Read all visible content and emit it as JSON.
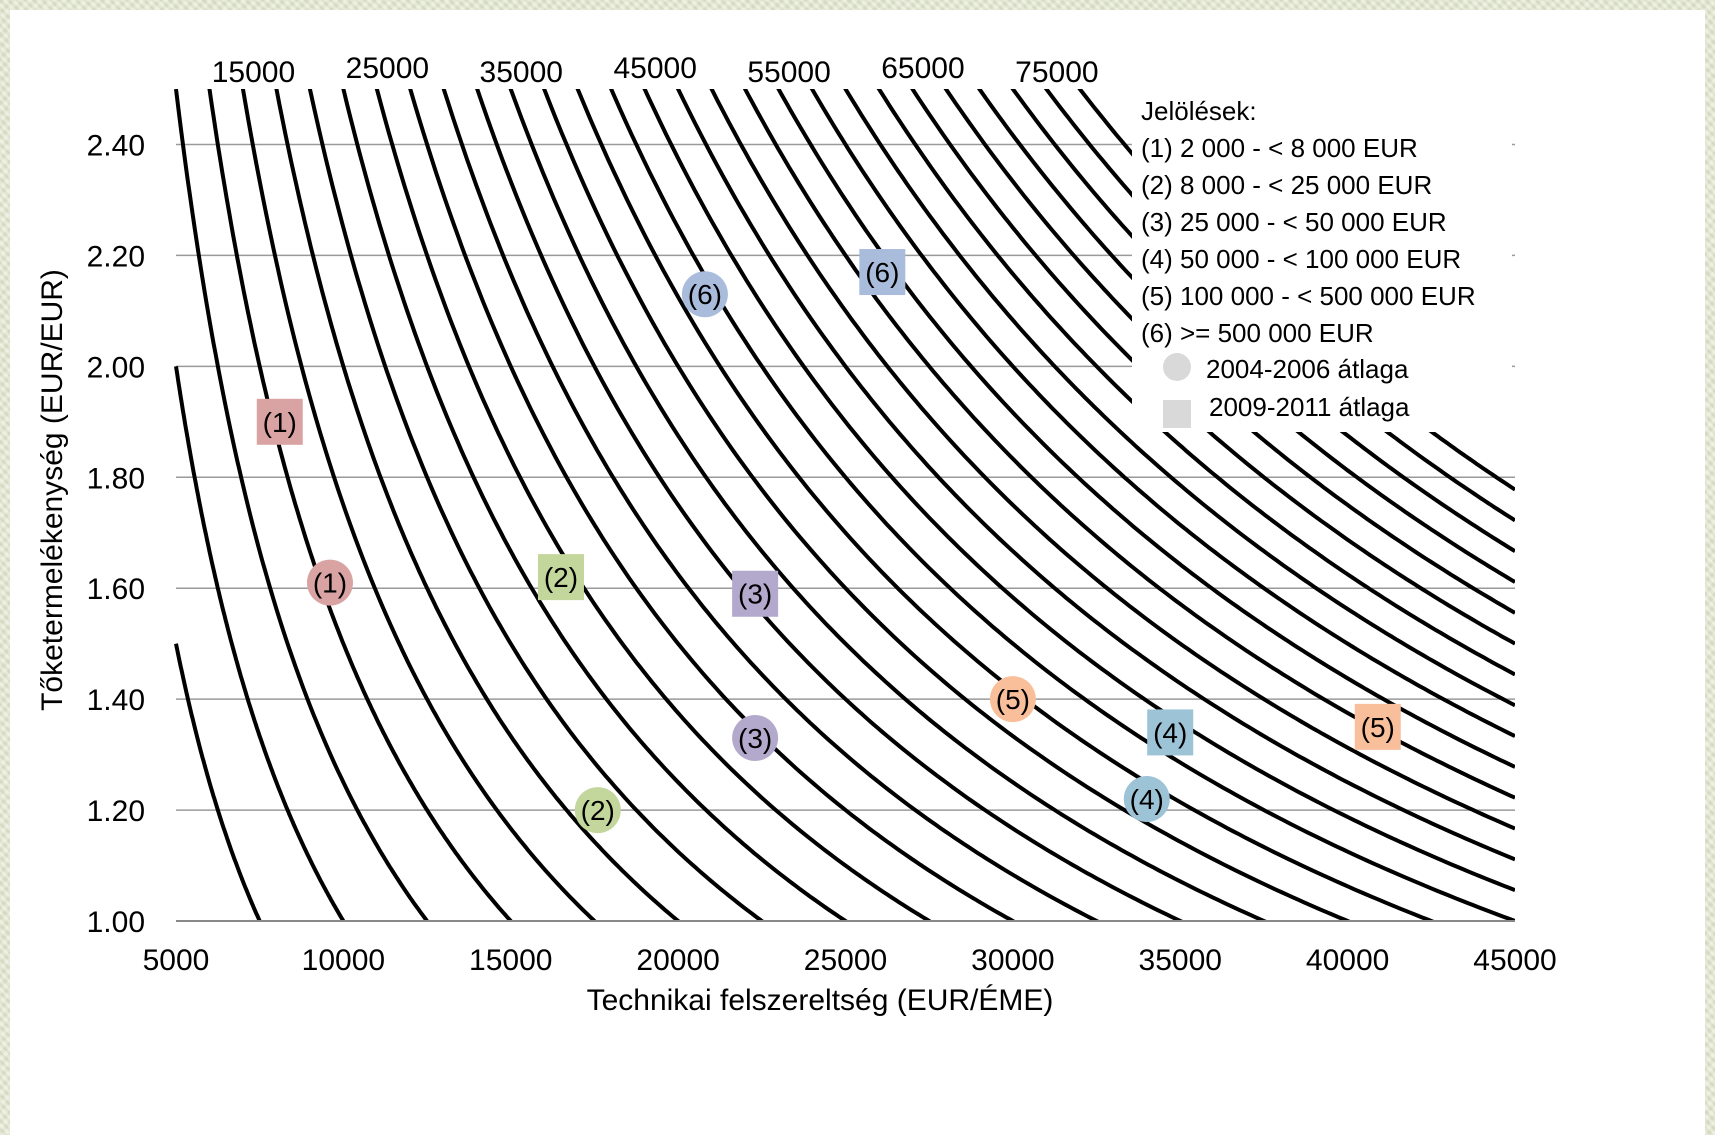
{
  "chart_data": {
    "type": "scatter",
    "xlabel": "Technikai felszereltség  (EUR/ÉME)",
    "ylabel": "Tőketermelékenység  (EUR/EUR)",
    "xlim": [
      5000,
      45000
    ],
    "ylim": [
      1.0,
      2.5
    ],
    "x_ticks": [
      "5000",
      "10000",
      "15000",
      "20000",
      "25000",
      "30000",
      "35000",
      "40000",
      "45000"
    ],
    "y_ticks": [
      "1.00",
      "1.20",
      "1.40",
      "1.60",
      "1.80",
      "2.00",
      "2.20",
      "2.40"
    ],
    "grid": "horizontal",
    "isoquants": {
      "levels": [
        5000,
        7500,
        10000,
        12500,
        15000,
        17500,
        20000,
        22500,
        25000,
        27500,
        30000,
        32500,
        35000,
        37500,
        40000,
        42500,
        45000,
        47500,
        50000,
        52500,
        55000,
        57500,
        60000,
        62500,
        65000,
        67500,
        70000,
        72500,
        75000,
        77500,
        80000
      ],
      "labels": [
        "15000",
        "25000",
        "35000",
        "45000",
        "55000",
        "65000",
        "75000"
      ]
    },
    "series": [
      {
        "name": "2004-2006 átlaga",
        "marker": "circle",
        "points": [
          {
            "label": "(1)",
            "x": 9600,
            "y": 1.61,
            "color": "#d9a3a3"
          },
          {
            "label": "(2)",
            "x": 17600,
            "y": 1.2,
            "color": "#c3d69b"
          },
          {
            "label": "(3)",
            "x": 22300,
            "y": 1.33,
            "color": "#b3a9cc"
          },
          {
            "label": "(4)",
            "x": 34000,
            "y": 1.22,
            "color": "#9dc3d6"
          },
          {
            "label": "(5)",
            "x": 30000,
            "y": 1.4,
            "color": "#f9bf9b"
          },
          {
            "label": "(6)",
            "x": 20800,
            "y": 2.13,
            "color": "#a9bcdc"
          }
        ]
      },
      {
        "name": "2009-2011 átlaga",
        "marker": "square",
        "points": [
          {
            "label": "(1)",
            "x": 8100,
            "y": 1.9,
            "color": "#d9a3a3"
          },
          {
            "label": "(2)",
            "x": 16500,
            "y": 1.62,
            "color": "#c3d69b"
          },
          {
            "label": "(3)",
            "x": 22300,
            "y": 1.59,
            "color": "#b3a9cc"
          },
          {
            "label": "(4)",
            "x": 34700,
            "y": 1.34,
            "color": "#9dc3d6"
          },
          {
            "label": "(5)",
            "x": 40900,
            "y": 1.35,
            "color": "#f9bf9b"
          },
          {
            "label": "(6)",
            "x": 26100,
            "y": 2.17,
            "color": "#a9bcdc"
          }
        ]
      }
    ],
    "legend": {
      "title": "Jelölések:",
      "placement": "top-right",
      "entries": [
        "(1) 2 000 - < 8 000 EUR",
        "(2) 8 000 - < 25 000 EUR",
        "(3) 25 000 - < 50 000 EUR",
        "(4) 50 000 - < 100 000 EUR",
        "(5) 100 000 - < 500 000 EUR",
        "(6) >= 500 000 EUR"
      ],
      "circle_label": "2004-2006 átlaga",
      "square_label": "2009-2011 átlaga",
      "marker_color": "#d9d9d9"
    }
  }
}
